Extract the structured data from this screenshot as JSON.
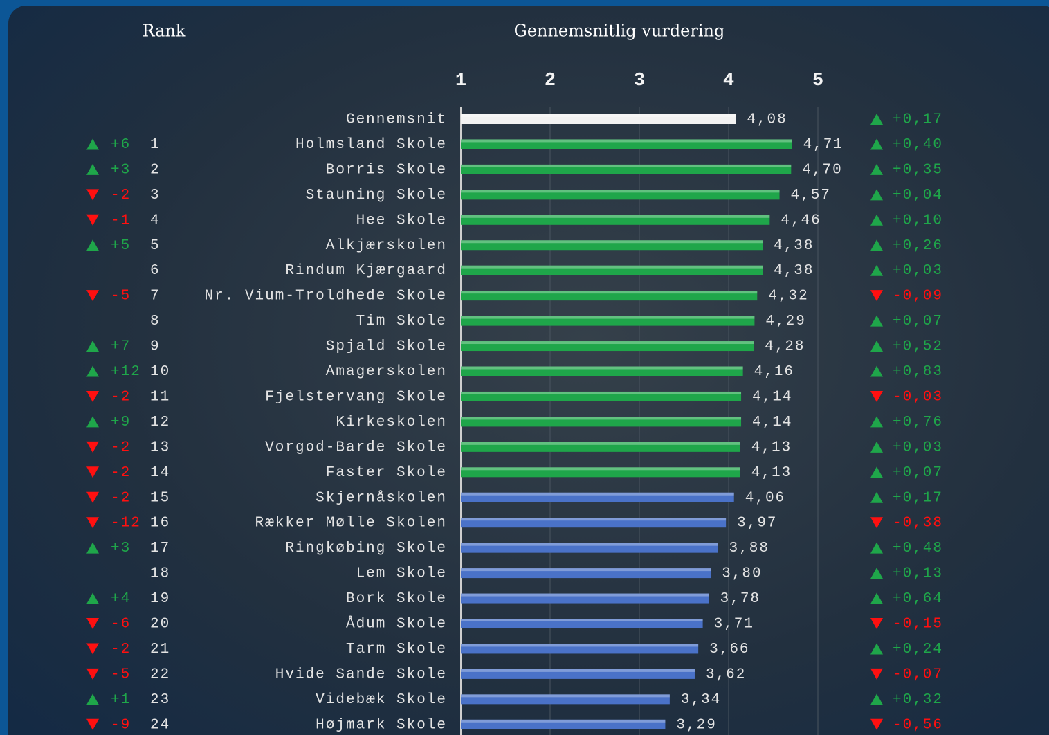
{
  "chart_data": {
    "type": "bar",
    "orientation": "horizontal",
    "rank_header": "Rank",
    "title": "Gennemsnitlig vurdering",
    "categories": [
      "Gennemsnit",
      "Holmsland Skole",
      "Borris Skole",
      "Stauning Skole",
      "Hee Skole",
      "Alkjærskolen",
      "Rindum Kjærgaard",
      "Nr. Vium-Troldhede Skole",
      "Tim Skole",
      "Spjald Skole",
      "Amagerskolen",
      "Fjelstervang Skole",
      "Kirkeskolen",
      "Vorgod-Barde Skole",
      "Faster Skole",
      "Skjernåskolen",
      "Rækker Mølle Skolen",
      "Ringkøbing Skole",
      "Lem Skole",
      "Bork Skole",
      "Ådum Skole",
      "Tarm Skole",
      "Hvide Sande Skole",
      "Videbæk Skole",
      "Højmark Skole"
    ],
    "values": [
      4.08,
      4.71,
      4.7,
      4.57,
      4.46,
      4.38,
      4.38,
      4.32,
      4.29,
      4.28,
      4.16,
      4.14,
      4.14,
      4.13,
      4.13,
      4.06,
      3.97,
      3.88,
      3.8,
      3.78,
      3.71,
      3.66,
      3.62,
      3.34,
      3.29
    ],
    "value_labels": [
      "4,08",
      "4,71",
      "4,70",
      "4,57",
      "4,46",
      "4,38",
      "4,38",
      "4,32",
      "4,29",
      "4,28",
      "4,16",
      "4,14",
      "4,14",
      "4,13",
      "4,13",
      "4,06",
      "3,97",
      "3,88",
      "3,80",
      "3,78",
      "3,71",
      "3,66",
      "3,62",
      "3,34",
      "3,29"
    ],
    "colors": [
      "#f2f2f2",
      "#1fa64a",
      "#1fa64a",
      "#1fa64a",
      "#1fa64a",
      "#1fa64a",
      "#1fa64a",
      "#1fa64a",
      "#1fa64a",
      "#1fa64a",
      "#1fa64a",
      "#1fa64a",
      "#1fa64a",
      "#1fa64a",
      "#1fa64a",
      "#4a72c8",
      "#4a72c8",
      "#4a72c8",
      "#4a72c8",
      "#4a72c8",
      "#4a72c8",
      "#4a72c8",
      "#4a72c8",
      "#4a72c8",
      "#4a72c8"
    ],
    "ranks": [
      null,
      1,
      2,
      3,
      4,
      5,
      6,
      7,
      8,
      9,
      10,
      11,
      12,
      13,
      14,
      15,
      16,
      17,
      18,
      19,
      20,
      21,
      22,
      23,
      24
    ],
    "rank_changes": [
      null,
      6,
      3,
      -2,
      -1,
      5,
      null,
      -5,
      null,
      7,
      12,
      -2,
      9,
      -2,
      -2,
      -2,
      -12,
      3,
      null,
      4,
      -6,
      -2,
      -5,
      1,
      -9
    ],
    "rank_change_labels": [
      null,
      "+6",
      "+3",
      "-2",
      "-1",
      "+5",
      null,
      "-5",
      null,
      "+7",
      "+12",
      "-2",
      "+9",
      "-2",
      "-2",
      "-2",
      "-12",
      "+3",
      null,
      "+4",
      "-6",
      "-2",
      "-5",
      "+1",
      "-9"
    ],
    "value_changes": [
      0.17,
      0.4,
      0.35,
      0.04,
      0.1,
      0.26,
      0.03,
      -0.09,
      0.07,
      0.52,
      0.83,
      -0.03,
      0.76,
      0.03,
      0.07,
      0.17,
      -0.38,
      0.48,
      0.13,
      0.64,
      -0.15,
      0.24,
      -0.07,
      0.32,
      -0.56
    ],
    "value_change_labels": [
      "+0,17",
      "+0,40",
      "+0,35",
      "+0,04",
      "+0,10",
      "+0,26",
      "+0,03",
      "-0,09",
      "+0,07",
      "+0,52",
      "+0,83",
      "-0,03",
      "+0,76",
      "+0,03",
      "+0,07",
      "+0,17",
      "-0,38",
      "+0,48",
      "+0,13",
      "+0,64",
      "-0,15",
      "+0,24",
      "-0,07",
      "+0,32",
      "-0,56"
    ],
    "up_color": "#1fa64a",
    "down_color": "#ff1010",
    "xlim": [
      1,
      5
    ],
    "xticks": [
      1,
      2,
      3,
      4,
      5
    ],
    "grid": true
  }
}
